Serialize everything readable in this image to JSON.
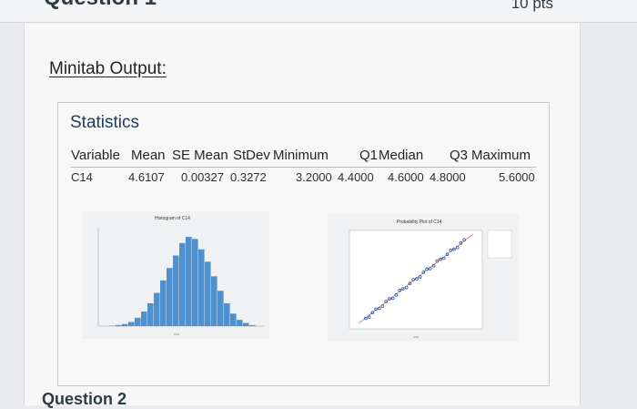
{
  "header": {
    "points": "10 pts"
  },
  "section": {
    "title": "Minitab Output:"
  },
  "stats": {
    "title": "Statistics",
    "columns": [
      "Variable",
      "Mean",
      "SE Mean",
      "StDev",
      "Minimum",
      "Q1",
      "Median",
      "Q3",
      "Maximum"
    ],
    "row": [
      "C14",
      "4.6107",
      "0.00327",
      "0.3272",
      "3.2000",
      "4.4000",
      "4.6000",
      "4.8000",
      "5.6000"
    ]
  },
  "colors": {
    "hist_bar": "#4f91cf",
    "prob_point": "#2f55a3",
    "title": "#1f3a5f"
  },
  "chart_data": [
    {
      "type": "bar",
      "title": "Histogram of C14",
      "xlabel": "C14",
      "values": [
        0.2,
        0.5,
        1,
        2,
        4,
        7,
        11,
        16,
        22,
        28,
        34,
        40,
        43,
        42,
        37,
        31,
        24,
        17,
        11,
        6,
        3,
        1.5,
        0.5
      ]
    },
    {
      "type": "scatter",
      "title": "Probability Plot of C14",
      "xlabel": "C14"
    }
  ]
}
